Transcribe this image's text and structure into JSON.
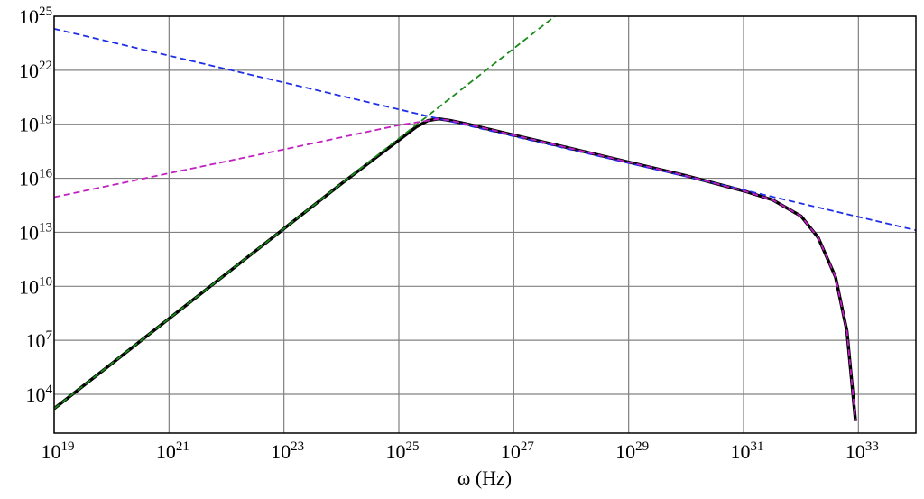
{
  "chart_data": {
    "type": "line",
    "xlabel": "ω (Hz)",
    "xscale": "log",
    "yscale": "log",
    "grid": true,
    "xlim": [
      1e+19,
      1e+34
    ],
    "ylim": [
      70,
      1e+25
    ],
    "xticks": [
      {
        "value": 1e+19,
        "label": "10^19"
      },
      {
        "value": 1e+21,
        "label": "10^21"
      },
      {
        "value": 1e+23,
        "label": "10^23"
      },
      {
        "value": 1e+25,
        "label": "10^25"
      },
      {
        "value": 1e+27,
        "label": "10^27"
      },
      {
        "value": 1e+29,
        "label": "10^29"
      },
      {
        "value": 1e+31,
        "label": "10^31"
      },
      {
        "value": 1e+33,
        "label": "10^33"
      }
    ],
    "yticks": [
      {
        "value": 10000.0,
        "label": "10^4"
      },
      {
        "value": 10000000.0,
        "label": "10^7"
      },
      {
        "value": 10000000000.0,
        "label": "10^10"
      },
      {
        "value": 10000000000000.0,
        "label": "10^13"
      },
      {
        "value": 1e+16,
        "label": "10^16"
      },
      {
        "value": 1e+19,
        "label": "10^19"
      },
      {
        "value": 1e+22,
        "label": "10^22"
      },
      {
        "value": 1e+25,
        "label": "10^25"
      }
    ],
    "series": [
      {
        "color": "#000000",
        "style": "solid",
        "x": [
          1e+19,
          1e+20,
          1e+21,
          1e+22,
          1e+23,
          1e+24,
          1e+25,
          2e+25,
          3.2e+25,
          5e+25,
          7.9e+25,
          1.6e+26,
          1e+27,
          1e+28,
          1e+29,
          1e+30,
          1e+31,
          3.2e+31,
          1e+32,
          2e+32,
          4e+32,
          6.3e+32,
          8.9e+32
        ],
        "values": [
          1600.0,
          500000.0,
          160000000.0,
          50000000000.0,
          16000000000000.0,
          5000000000000000.0,
          1.3e+18,
          7.1e+18,
          1.6e+19,
          2e+19,
          1.6e+19,
          1e+19,
          2.5e+18,
          4.5e+17,
          7.9e+16,
          1.4e+16,
          2000000000000000.0,
          630000000000000.0,
          79000000000000.0,
          5000000000000.0,
          32000000000.0,
          32000000.0,
          320.0
        ]
      },
      {
        "color": "#1a8a1a",
        "style": "dashed",
        "x": [
          1e+19,
          5.2e+27
        ],
        "values": [
          1600.0,
          1e+25
        ]
      },
      {
        "color": "#1f2fe6",
        "style": "dashed",
        "x": [
          1e+19,
          1e+34
        ],
        "values": [
          2e+24,
          13000000000000.0
        ]
      },
      {
        "color": "#c020c0",
        "style": "dashed",
        "x": [
          1e+19,
          1e+21,
          1e+23,
          1e+25,
          5e+25,
          7.9e+25,
          1.6e+26,
          1e+27,
          1e+28,
          1e+29,
          1e+30,
          1e+31,
          3.2e+31,
          1e+32,
          2e+32,
          4e+32,
          6.3e+32,
          8.9e+32
        ],
        "values": [
          890000000000000.0,
          1.9e+16,
          4e+17,
          8.9e+18,
          2e+19,
          1.6e+19,
          1e+19,
          2.5e+18,
          4.5e+17,
          7.9e+16,
          1.4e+16,
          2000000000000000.0,
          630000000000000.0,
          79000000000000.0,
          5000000000000.0,
          32000000000.0,
          32000000.0,
          320.0
        ]
      }
    ]
  }
}
